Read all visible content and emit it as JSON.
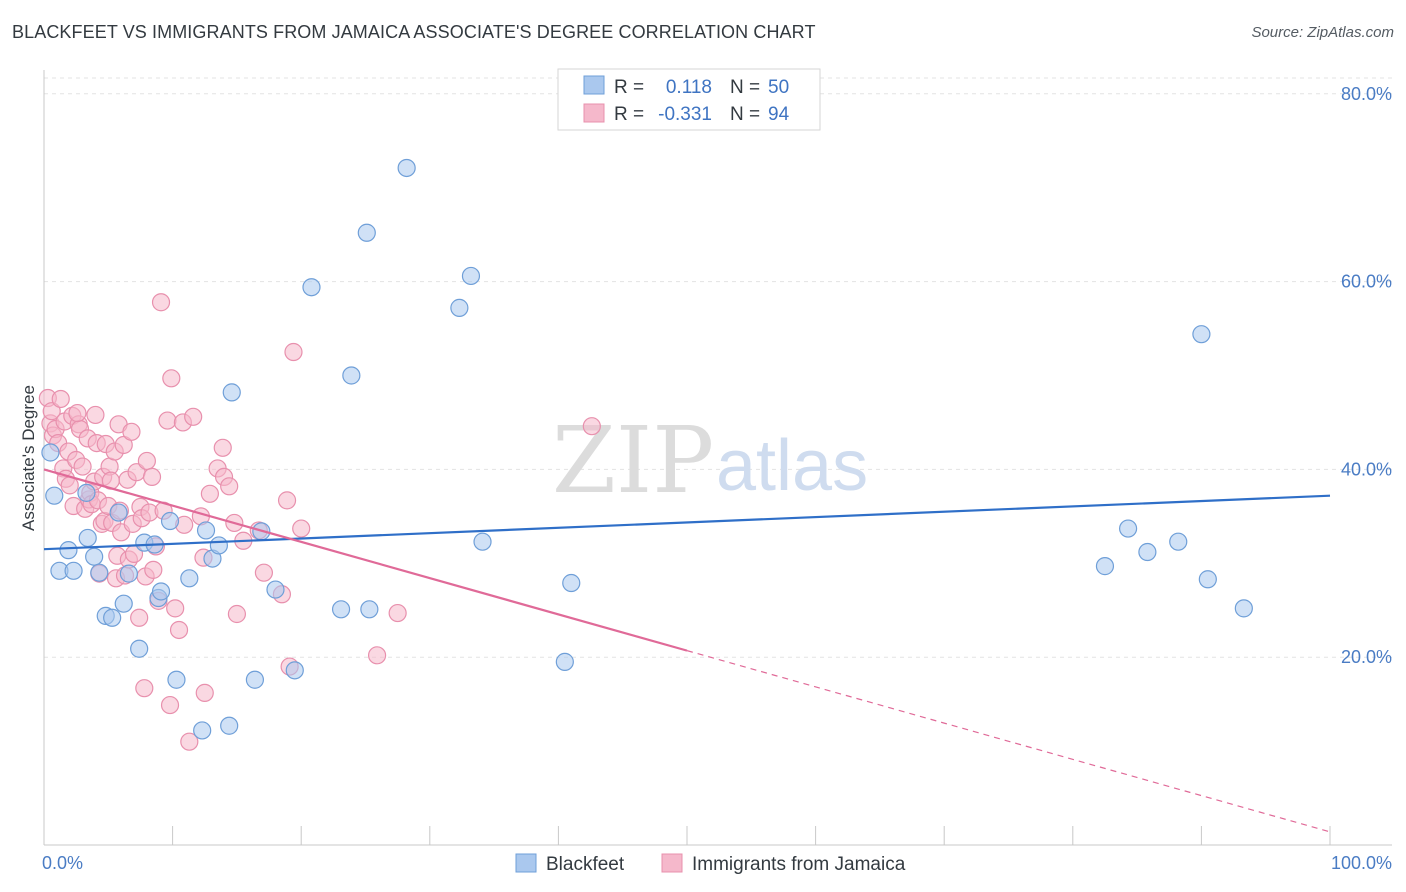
{
  "title": "BLACKFEET VS IMMIGRANTS FROM JAMAICA ASSOCIATE'S DEGREE CORRELATION CHART",
  "source": "Source: ZipAtlas.com",
  "watermark": {
    "zip": "ZIP",
    "atlas": "atlas"
  },
  "colors": {
    "blue_fill": "#aac8ee",
    "blue_stroke": "#6f9fd8",
    "blue_line": "#2f6fc8",
    "pink_fill": "#f5b8cb",
    "pink_stroke": "#e890ad",
    "pink_line": "#e06a98",
    "grid": "#e3e3e3",
    "axis": "#c8c8c8",
    "tick_label": "#4a7cc4"
  },
  "legend": {
    "rows": [
      {
        "r_label": "R =",
        "r_value": "0.118",
        "n_label": "N =",
        "n_value": "50",
        "color": "blue"
      },
      {
        "r_label": "R =",
        "r_value": "-0.331",
        "n_label": "N =",
        "n_value": "94",
        "color": "pink"
      }
    ]
  },
  "chart_data": {
    "type": "scatter",
    "xlabel": "",
    "ylabel": "Associate's Degree",
    "xlim": [
      0,
      100
    ],
    "ylim": [
      0,
      82
    ],
    "x_tick_labels": [
      "0.0%",
      "100.0%"
    ],
    "y_ticks": [
      20,
      40,
      60,
      80
    ],
    "y_tick_labels": [
      "20.0%",
      "40.0%",
      "60.0%",
      "80.0%"
    ],
    "grid": true,
    "series": [
      {
        "name": "Blackfeet",
        "color": "blue",
        "trend": {
          "x0": 0,
          "y0": 31.5,
          "x1": 100,
          "y1": 37.2,
          "solid_until": 100
        },
        "points": [
          [
            0.8,
            37.2
          ],
          [
            1.2,
            29.2
          ],
          [
            1.9,
            31.4
          ],
          [
            2.3,
            29.2
          ],
          [
            3.3,
            37.5
          ],
          [
            3.4,
            32.7
          ],
          [
            3.9,
            30.7
          ],
          [
            4.3,
            29.0
          ],
          [
            4.8,
            24.4
          ],
          [
            5.3,
            24.2
          ],
          [
            5.8,
            35.4
          ],
          [
            6.2,
            25.7
          ],
          [
            6.6,
            28.9
          ],
          [
            7.4,
            20.9
          ],
          [
            7.8,
            32.2
          ],
          [
            8.6,
            32.0
          ],
          [
            8.9,
            26.3
          ],
          [
            9.1,
            27.0
          ],
          [
            9.8,
            34.5
          ],
          [
            10.3,
            17.6
          ],
          [
            11.3,
            28.4
          ],
          [
            12.3,
            12.2
          ],
          [
            12.6,
            33.5
          ],
          [
            13.1,
            30.5
          ],
          [
            13.6,
            31.9
          ],
          [
            14.4,
            12.7
          ],
          [
            14.6,
            48.2
          ],
          [
            16.4,
            17.6
          ],
          [
            16.9,
            33.4
          ],
          [
            18.0,
            27.2
          ],
          [
            19.5,
            18.6
          ],
          [
            20.8,
            59.4
          ],
          [
            23.1,
            25.1
          ],
          [
            23.9,
            50.0
          ],
          [
            25.1,
            65.2
          ],
          [
            25.3,
            25.1
          ],
          [
            28.2,
            72.1
          ],
          [
            32.3,
            57.2
          ],
          [
            33.2,
            60.6
          ],
          [
            34.1,
            32.3
          ],
          [
            40.5,
            19.5
          ],
          [
            41.0,
            27.9
          ],
          [
            82.5,
            29.7
          ],
          [
            84.3,
            33.7
          ],
          [
            85.8,
            31.2
          ],
          [
            88.2,
            32.3
          ],
          [
            90.0,
            54.4
          ],
          [
            90.5,
            28.3
          ],
          [
            93.3,
            25.2
          ],
          [
            0.5,
            41.8
          ]
        ]
      },
      {
        "name": "Immigrants from Jamaica",
        "color": "pink",
        "trend": {
          "x0": 0,
          "y0": 40.0,
          "x1": 100,
          "y1": 1.4,
          "solid_until": 50
        },
        "points": [
          [
            0.3,
            47.6
          ],
          [
            0.5,
            44.9
          ],
          [
            0.6,
            46.2
          ],
          [
            0.7,
            43.6
          ],
          [
            0.9,
            44.3
          ],
          [
            1.1,
            42.8
          ],
          [
            1.3,
            47.5
          ],
          [
            1.5,
            40.1
          ],
          [
            1.6,
            45.1
          ],
          [
            1.7,
            39.0
          ],
          [
            1.9,
            41.9
          ],
          [
            2.0,
            38.3
          ],
          [
            2.2,
            45.7
          ],
          [
            2.3,
            36.1
          ],
          [
            2.5,
            41.0
          ],
          [
            2.7,
            44.8
          ],
          [
            2.8,
            44.3
          ],
          [
            3.0,
            40.3
          ],
          [
            3.2,
            35.8
          ],
          [
            3.4,
            43.3
          ],
          [
            3.5,
            36.8
          ],
          [
            3.6,
            37.5
          ],
          [
            3.7,
            36.3
          ],
          [
            3.9,
            38.7
          ],
          [
            4.0,
            45.8
          ],
          [
            4.1,
            42.8
          ],
          [
            4.2,
            36.7
          ],
          [
            4.3,
            28.9
          ],
          [
            4.5,
            34.2
          ],
          [
            4.6,
            39.2
          ],
          [
            4.7,
            34.5
          ],
          [
            4.8,
            42.7
          ],
          [
            5.0,
            36.1
          ],
          [
            5.1,
            40.3
          ],
          [
            5.2,
            38.8
          ],
          [
            5.3,
            34.3
          ],
          [
            5.5,
            41.9
          ],
          [
            5.6,
            28.4
          ],
          [
            5.7,
            30.8
          ],
          [
            5.8,
            44.8
          ],
          [
            5.9,
            35.6
          ],
          [
            6.0,
            33.3
          ],
          [
            6.2,
            42.6
          ],
          [
            6.3,
            28.7
          ],
          [
            6.5,
            38.9
          ],
          [
            6.6,
            30.4
          ],
          [
            6.8,
            44.0
          ],
          [
            6.9,
            34.2
          ],
          [
            7.0,
            31.0
          ],
          [
            7.2,
            39.7
          ],
          [
            7.4,
            24.2
          ],
          [
            7.5,
            36.0
          ],
          [
            7.6,
            34.8
          ],
          [
            7.8,
            16.7
          ],
          [
            7.9,
            28.6
          ],
          [
            8.0,
            40.9
          ],
          [
            8.2,
            35.4
          ],
          [
            8.4,
            39.2
          ],
          [
            8.5,
            29.3
          ],
          [
            8.7,
            31.8
          ],
          [
            8.9,
            26.0
          ],
          [
            9.1,
            57.8
          ],
          [
            9.3,
            35.6
          ],
          [
            9.6,
            45.2
          ],
          [
            9.8,
            14.9
          ],
          [
            9.9,
            49.7
          ],
          [
            10.2,
            25.2
          ],
          [
            10.5,
            22.9
          ],
          [
            10.9,
            34.1
          ],
          [
            10.8,
            45.0
          ],
          [
            11.3,
            11.0
          ],
          [
            11.6,
            45.6
          ],
          [
            12.2,
            35.0
          ],
          [
            12.4,
            30.6
          ],
          [
            12.5,
            16.2
          ],
          [
            12.9,
            37.4
          ],
          [
            13.5,
            40.1
          ],
          [
            13.9,
            42.3
          ],
          [
            14.0,
            39.2
          ],
          [
            14.4,
            38.2
          ],
          [
            14.8,
            34.3
          ],
          [
            15.0,
            24.6
          ],
          [
            15.5,
            32.4
          ],
          [
            16.7,
            33.5
          ],
          [
            17.1,
            29.0
          ],
          [
            18.5,
            26.7
          ],
          [
            18.9,
            36.7
          ],
          [
            19.1,
            19.0
          ],
          [
            19.4,
            52.5
          ],
          [
            20.0,
            33.7
          ],
          [
            25.9,
            20.2
          ],
          [
            27.5,
            24.7
          ],
          [
            42.6,
            44.6
          ],
          [
            2.6,
            46.0
          ]
        ]
      }
    ]
  },
  "bottom_legend": [
    {
      "label": "Blackfeet",
      "color": "blue"
    },
    {
      "label": "Immigrants from Jamaica",
      "color": "pink"
    }
  ]
}
